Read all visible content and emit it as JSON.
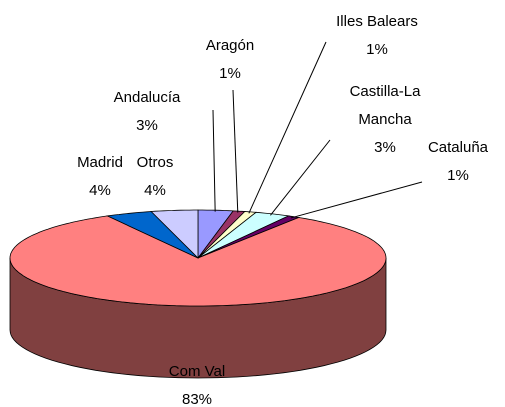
{
  "chart_data": {
    "type": "pie",
    "categories": [
      "Com Val",
      "Madrid",
      "Otros",
      "Andalucía",
      "Aragón",
      "Illes Balears",
      "Castilla-La Mancha",
      "Cataluña"
    ],
    "values": [
      83,
      4,
      4,
      3,
      1,
      1,
      3,
      1
    ],
    "value_labels": [
      "83%",
      "4%",
      "4%",
      "3%",
      "1%",
      "1%",
      "3%",
      "1%"
    ],
    "colors": [
      "#ff8080",
      "#0066cc",
      "#ccccff",
      "#9999ff",
      "#993366",
      "#ffffcc",
      "#ccffff",
      "#660066"
    ]
  }
}
